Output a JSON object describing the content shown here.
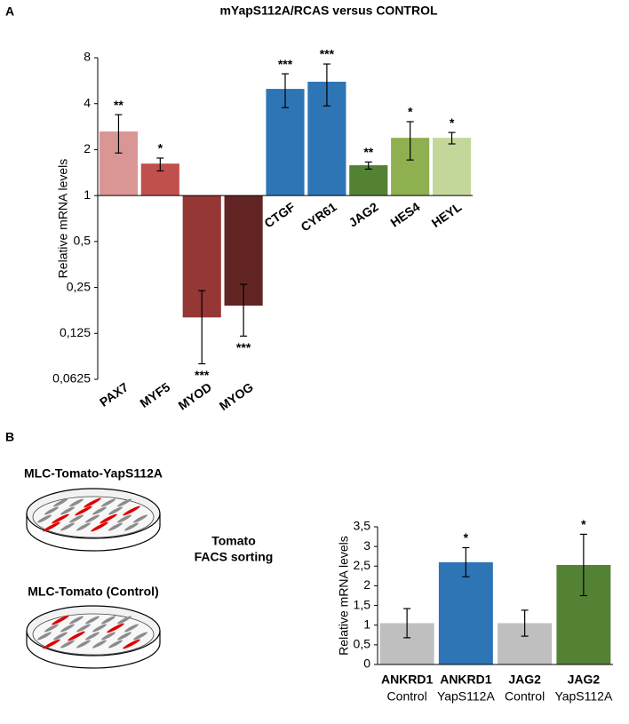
{
  "panels": {
    "a": "A",
    "b": "B"
  },
  "diagram": {
    "dish_top": "MLC-Tomato-YapS112A",
    "dish_bottom": "MLC-Tomato (Control)",
    "sorting": [
      "Tomato",
      "FACS sorting"
    ]
  },
  "chart_data": [
    {
      "type": "bar",
      "title": "mYapS112A/RCAS versus CONTROL",
      "y_label": "Relative mRNA levels",
      "log_base": 2,
      "x_axis_at": 1,
      "categories": [
        "PAX7",
        "MYF5",
        "MYOD",
        "MYOG",
        "CTGF",
        "CYR61",
        "JAG2",
        "HES4",
        "HEYL"
      ],
      "values": [
        2.63,
        1.62,
        0.159,
        0.19,
        5.0,
        5.57,
        1.58,
        2.39,
        2.39
      ],
      "error_low": [
        1.9,
        1.45,
        0.079,
        0.12,
        3.77,
        3.87,
        1.49,
        1.71,
        2.18
      ],
      "error_high": [
        3.39,
        1.76,
        0.238,
        0.262,
        6.28,
        7.28,
        1.66,
        3.05,
        2.59
      ],
      "annotations": [
        "**",
        "*",
        "***",
        "***",
        "***",
        "***",
        "**",
        "*",
        "*"
      ],
      "colors": [
        "#d99694",
        "#c0504d",
        "#953735",
        "#632523",
        "#2e75b6",
        "#2e75b6",
        "#548235",
        "#8fb050",
        "#c4d79b"
      ],
      "ylim": [
        0.0625,
        8
      ],
      "yticks": [
        8,
        4,
        2,
        1,
        {
          "value": 0.5,
          "label": "0,5"
        },
        {
          "value": 0.25,
          "label": "0,25"
        },
        {
          "value": 0.125,
          "label": "0,125"
        },
        {
          "value": 0.0625,
          "label": "0,0625"
        }
      ]
    },
    {
      "type": "bar",
      "y_label": "Relative mRNA levels",
      "categories": [
        "ANKRD1",
        "ANKRD1",
        "JAG2",
        "JAG2"
      ],
      "subcategories": [
        "Control",
        "YapS112A",
        "Control",
        "YapS112A"
      ],
      "values": [
        1.05,
        2.6,
        1.05,
        2.53
      ],
      "errors": [
        0.37,
        0.37,
        0.33,
        0.78
      ],
      "annotations": [
        null,
        "*",
        null,
        "*"
      ],
      "colors": [
        "#bfbfbf",
        "#2e75b6",
        "#bfbfbf",
        "#548235"
      ],
      "ylim": [
        0,
        3.5
      ],
      "yticks": [
        0,
        {
          "value": 0.5,
          "label": "0,5"
        },
        1,
        {
          "value": 1.5,
          "label": "1,5"
        },
        2,
        {
          "value": 2.5,
          "label": "2,5"
        },
        3,
        {
          "value": 3.5,
          "label": "3,5"
        }
      ]
    }
  ]
}
